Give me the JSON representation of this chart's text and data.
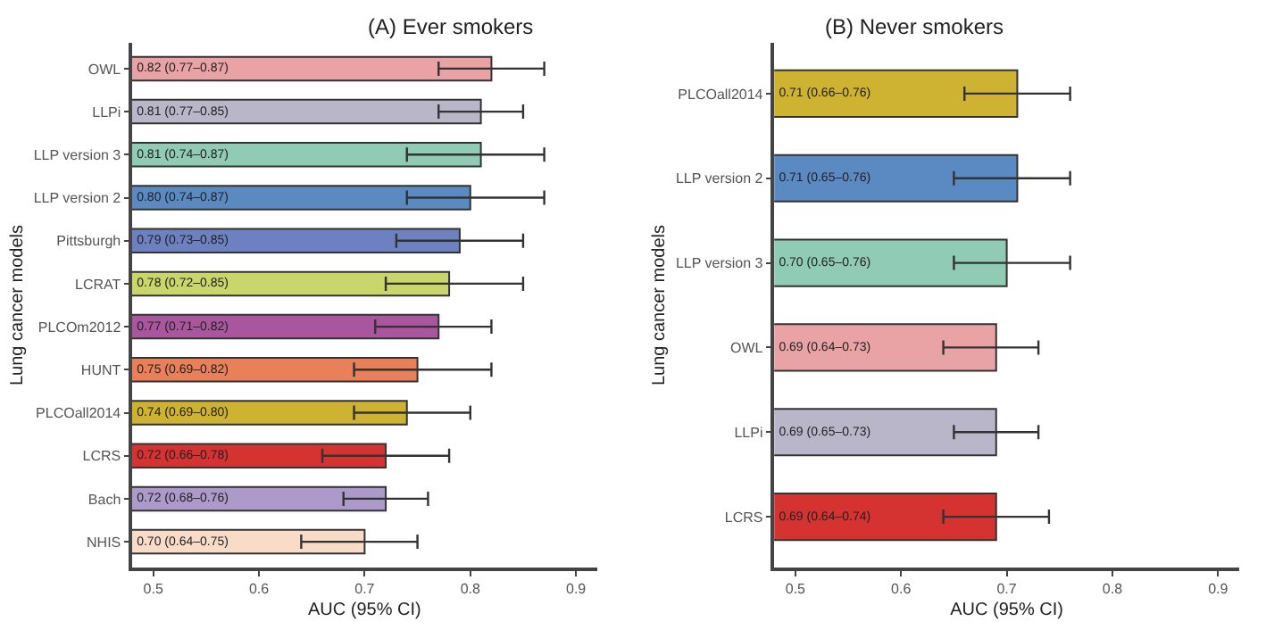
{
  "chart_data": [
    {
      "type": "bar",
      "orientation": "horizontal",
      "title": "(A) Ever smokers",
      "xlabel": "AUC (95% CI)",
      "ylabel": "Lung cancer models",
      "categories": [
        "OWL",
        "LLPi",
        "LLP version 3",
        "LLP version 2",
        "Pittsburgh",
        "LCRAT",
        "PLCOm2012",
        "HUNT",
        "PLCOall2014",
        "LCRS",
        "Bach",
        "NHIS"
      ],
      "values": [
        0.82,
        0.81,
        0.81,
        0.8,
        0.79,
        0.78,
        0.77,
        0.75,
        0.74,
        0.72,
        0.72,
        0.7
      ],
      "errors": [
        [
          0.77,
          0.87
        ],
        [
          0.77,
          0.85
        ],
        [
          0.74,
          0.87
        ],
        [
          0.74,
          0.87
        ],
        [
          0.73,
          0.85
        ],
        [
          0.72,
          0.85
        ],
        [
          0.71,
          0.82
        ],
        [
          0.69,
          0.82
        ],
        [
          0.69,
          0.8
        ],
        [
          0.66,
          0.78
        ],
        [
          0.68,
          0.76
        ],
        [
          0.64,
          0.75
        ]
      ],
      "value_labels": [
        "0.82 (0.77–0.87)",
        "0.81 (0.77–0.85)",
        "0.81 (0.74–0.87)",
        "0.80 (0.74–0.87)",
        "0.79 (0.73–0.85)",
        "0.78 (0.72–0.85)",
        "0.77 (0.71–0.82)",
        "0.75 (0.69–0.82)",
        "0.74 (0.69–0.80)",
        "0.72 (0.66–0.78)",
        "0.72 (0.68–0.76)",
        "0.70 (0.64–0.75)"
      ],
      "colors": [
        "#e9a3a4",
        "#bab6c9",
        "#90cbb6",
        "#5b89c2",
        "#6d80bf",
        "#c8d66b",
        "#a9569f",
        "#e98059",
        "#ceb232",
        "#d43331",
        "#ac9aca",
        "#f8dcc8"
      ],
      "xlim": [
        0.48,
        0.92
      ],
      "xticks": [
        0.5,
        0.6,
        0.7,
        0.8,
        0.9
      ]
    },
    {
      "type": "bar",
      "orientation": "horizontal",
      "title": "(B) Never smokers",
      "xlabel": "AUC (95% CI)",
      "ylabel": "Lung cancer models",
      "categories": [
        "PLCOall2014",
        "LLP version 2",
        "LLP version 3",
        "OWL",
        "LLPi",
        "LCRS"
      ],
      "values": [
        0.71,
        0.71,
        0.7,
        0.69,
        0.69,
        0.69
      ],
      "errors": [
        [
          0.66,
          0.76
        ],
        [
          0.65,
          0.76
        ],
        [
          0.65,
          0.76
        ],
        [
          0.64,
          0.73
        ],
        [
          0.65,
          0.73
        ],
        [
          0.64,
          0.74
        ]
      ],
      "value_labels": [
        "0.71 (0.66–0.76)",
        "0.71 (0.65–0.76)",
        "0.70 (0.65–0.76)",
        "0.69 (0.64–0.73)",
        "0.69 (0.65–0.73)",
        "0.69 (0.64–0.74)"
      ],
      "colors": [
        "#ceb232",
        "#5b89c2",
        "#90cbb6",
        "#e9a3a4",
        "#bab6c9",
        "#d43331"
      ],
      "xlim": [
        0.48,
        0.92
      ],
      "xticks": [
        0.5,
        0.6,
        0.7,
        0.8,
        0.9
      ]
    }
  ]
}
